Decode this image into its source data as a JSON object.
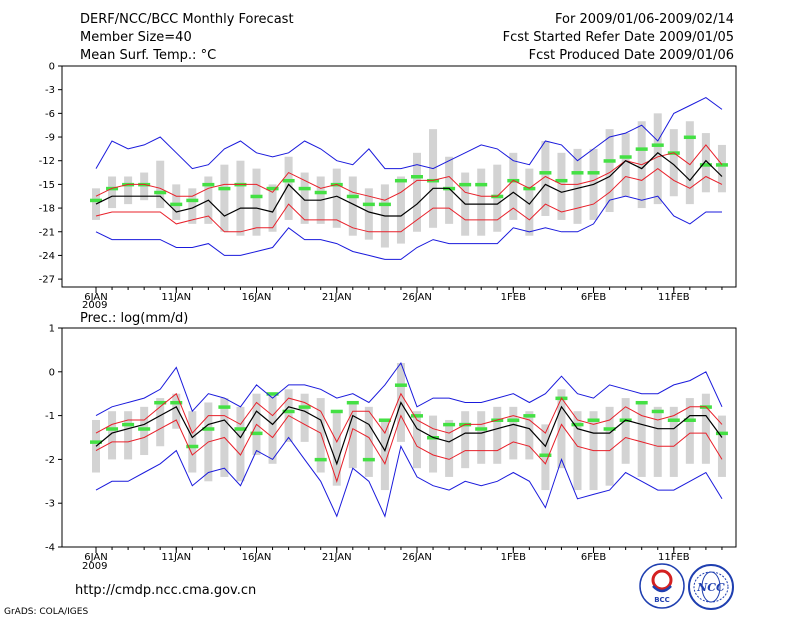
{
  "header": {
    "title": "DERF/NCC/BCC Monthly Forecast",
    "member_size": "Member Size=40",
    "period": "For 2009/01/06-2009/02/14",
    "started": "Fcst Started Refer Date 2009/01/05",
    "produced": "Fcst Produced Date 2009/01/06"
  },
  "footer": {
    "url": "http://cmdp.ncc.cma.gov.cn",
    "credit": "GrADS: COLA/IGES",
    "logo_bcc": "BCC",
    "logo_ncc": "NCC"
  },
  "colors": {
    "mean": "#000000",
    "spread": "#e8202a",
    "envelope": "#1a1adc",
    "observed": "#44e044",
    "box": "#d3d3d3"
  },
  "chart_data": [
    {
      "type": "line",
      "title": "Mean Surf. Temp.: °C",
      "xlabel": "",
      "ylabel": "°C",
      "x": [
        "Jan 6",
        "Jan 7",
        "Jan 8",
        "Jan 9",
        "Jan 10",
        "Jan 11",
        "Jan 12",
        "Jan 13",
        "Jan 14",
        "Jan 15",
        "Jan 16",
        "Jan 17",
        "Jan 18",
        "Jan 19",
        "Jan 20",
        "Jan 21",
        "Jan 22",
        "Jan 23",
        "Jan 24",
        "Jan 25",
        "Jan 26",
        "Jan 27",
        "Jan 28",
        "Jan 29",
        "Jan 30",
        "Jan 31",
        "Feb 1",
        "Feb 2",
        "Feb 3",
        "Feb 4",
        "Feb 5",
        "Feb 6",
        "Feb 7",
        "Feb 8",
        "Feb 9",
        "Feb 10",
        "Feb 11",
        "Feb 12",
        "Feb 13",
        "Feb 14"
      ],
      "xticks": [
        {
          "index": 0,
          "label": "6JAN"
        },
        {
          "index": 5,
          "label": "11JAN"
        },
        {
          "index": 10,
          "label": "16JAN"
        },
        {
          "index": 15,
          "label": "21JAN"
        },
        {
          "index": 20,
          "label": "26JAN"
        },
        {
          "index": 26,
          "label": "1FEB"
        },
        {
          "index": 31,
          "label": "6FEB"
        },
        {
          "index": 36,
          "label": "11FEB"
        }
      ],
      "year_label": "2009",
      "yticks": [
        0,
        -3,
        -6,
        -9,
        -12,
        -15,
        -18,
        -21,
        -24,
        -27
      ],
      "ylim": [
        -28,
        0
      ],
      "series": [
        {
          "name": "upper envelope",
          "role": "envelope",
          "values": [
            -13.0,
            -9.5,
            -10.5,
            -10.0,
            -9.0,
            -11.0,
            -13.0,
            -12.5,
            -10.5,
            -9.5,
            -11.0,
            -11.5,
            -11.0,
            -9.5,
            -10.5,
            -12.0,
            -12.5,
            -10.5,
            -13.0,
            -13.0,
            -12.5,
            -13.0,
            -12.0,
            -11.0,
            -10.0,
            -10.5,
            -12.0,
            -12.5,
            -9.5,
            -10.0,
            -12.0,
            -10.5,
            -9.0,
            -8.5,
            -7.5,
            -9.5,
            -6.0,
            -5.0,
            -4.0,
            -5.5
          ]
        },
        {
          "name": "upper spread",
          "role": "spread",
          "values": [
            -16.5,
            -15.5,
            -15.0,
            -15.0,
            -15.5,
            -16.5,
            -16.5,
            -15.5,
            -15.0,
            -15.0,
            -15.0,
            -16.0,
            -13.5,
            -14.5,
            -15.5,
            -15.0,
            -16.0,
            -16.5,
            -17.0,
            -16.0,
            -14.5,
            -14.5,
            -14.0,
            -16.0,
            -16.5,
            -16.5,
            -14.5,
            -15.5,
            -14.0,
            -15.0,
            -15.0,
            -14.5,
            -13.5,
            -12.0,
            -12.5,
            -11.5,
            -11.0,
            -12.5,
            -10.0,
            -12.5
          ]
        },
        {
          "name": "ensemble mean",
          "role": "mean",
          "values": [
            -17.5,
            -16.5,
            -16.5,
            -16.5,
            -16.5,
            -18.5,
            -18.0,
            -17.0,
            -19.0,
            -18.0,
            -18.0,
            -18.5,
            -15.0,
            -17.0,
            -17.0,
            -16.5,
            -17.5,
            -18.5,
            -19.0,
            -19.0,
            -17.5,
            -15.5,
            -15.5,
            -17.5,
            -17.5,
            -17.5,
            -16.0,
            -17.5,
            -15.0,
            -16.0,
            -15.5,
            -15.0,
            -14.0,
            -12.0,
            -13.0,
            -11.0,
            -12.5,
            -14.5,
            -12.0,
            -14.0
          ]
        },
        {
          "name": "lower spread",
          "role": "spread",
          "values": [
            -19.0,
            -18.5,
            -18.5,
            -18.5,
            -18.5,
            -20.0,
            -19.5,
            -19.0,
            -21.0,
            -21.0,
            -20.5,
            -20.5,
            -17.5,
            -19.5,
            -19.5,
            -19.5,
            -20.5,
            -21.0,
            -21.0,
            -21.0,
            -19.5,
            -18.0,
            -18.0,
            -19.5,
            -19.5,
            -19.5,
            -18.0,
            -19.5,
            -17.5,
            -18.5,
            -18.0,
            -17.5,
            -16.0,
            -14.0,
            -14.5,
            -13.0,
            -14.5,
            -15.5,
            -14.0,
            -15.0
          ]
        },
        {
          "name": "lower envelope",
          "role": "envelope",
          "values": [
            -21.0,
            -22.0,
            -22.0,
            -22.0,
            -22.0,
            -23.0,
            -23.0,
            -22.5,
            -24.0,
            -24.0,
            -23.5,
            -23.0,
            -20.5,
            -22.0,
            -22.0,
            -22.5,
            -23.5,
            -24.0,
            -24.5,
            -24.5,
            -23.0,
            -22.0,
            -22.5,
            -22.5,
            -22.5,
            -22.5,
            -20.5,
            -21.0,
            -20.5,
            -21.0,
            -21.0,
            -20.0,
            -17.0,
            -16.5,
            -17.0,
            -16.5,
            -19.0,
            -20.0,
            -18.5,
            -18.5
          ]
        }
      ],
      "boxes": [
        [
          -19.5,
          -15.5
        ],
        [
          -18.0,
          -14.0
        ],
        [
          -17.5,
          -14.0
        ],
        [
          -17.0,
          -13.5
        ],
        [
          -18.0,
          -12.0
        ],
        [
          -19.5,
          -15.0
        ],
        [
          -20.0,
          -15.5
        ],
        [
          -20.0,
          -14.0
        ],
        [
          -21.0,
          -12.5
        ],
        [
          -21.5,
          -12.0
        ],
        [
          -21.5,
          -13.0
        ],
        [
          -21.0,
          -15.0
        ],
        [
          -19.5,
          -11.5
        ],
        [
          -20.0,
          -13.5
        ],
        [
          -20.0,
          -14.0
        ],
        [
          -20.5,
          -13.0
        ],
        [
          -21.5,
          -14.0
        ],
        [
          -22.0,
          -15.5
        ],
        [
          -23.0,
          -15.0
        ],
        [
          -22.5,
          -14.0
        ],
        [
          -21.0,
          -11.0
        ],
        [
          -20.5,
          -8.0
        ],
        [
          -20.0,
          -11.5
        ],
        [
          -21.5,
          -13.5
        ],
        [
          -21.5,
          -13.0
        ],
        [
          -21.0,
          -12.5
        ],
        [
          -19.5,
          -11.0
        ],
        [
          -21.5,
          -13.0
        ],
        [
          -19.0,
          -9.5
        ],
        [
          -19.5,
          -11.0
        ],
        [
          -20.0,
          -10.5
        ],
        [
          -19.5,
          -10.5
        ],
        [
          -18.5,
          -8.0
        ],
        [
          -16.5,
          -8.5
        ],
        [
          -18.0,
          -7.0
        ],
        [
          -17.5,
          -6.0
        ],
        [
          -16.5,
          -8.0
        ],
        [
          -17.5,
          -7.0
        ],
        [
          -16.0,
          -8.5
        ],
        [
          -16.0,
          -10.0
        ]
      ],
      "observed": [
        -17.0,
        -15.5,
        -15.0,
        -15.0,
        -16.0,
        -17.5,
        -17.0,
        -15.0,
        -15.5,
        -15.0,
        -16.5,
        -15.5,
        -14.5,
        -15.5,
        -16.0,
        -15.0,
        -16.5,
        -17.5,
        -17.5,
        -14.5,
        -14.0,
        -14.5,
        -15.5,
        -15.0,
        -15.0,
        -16.5,
        -14.5,
        -15.5,
        -13.5,
        -14.5,
        -13.5,
        -13.5,
        -12.0,
        -11.5,
        -10.5,
        -10.0,
        -11.0,
        -9.0,
        -12.5,
        -12.5
      ]
    },
    {
      "type": "line",
      "title": "Prec.: log(mm/d)",
      "xlabel": "",
      "ylabel": "log(mm/d)",
      "x": [
        "Jan 6",
        "Jan 7",
        "Jan 8",
        "Jan 9",
        "Jan 10",
        "Jan 11",
        "Jan 12",
        "Jan 13",
        "Jan 14",
        "Jan 15",
        "Jan 16",
        "Jan 17",
        "Jan 18",
        "Jan 19",
        "Jan 20",
        "Jan 21",
        "Jan 22",
        "Jan 23",
        "Jan 24",
        "Jan 25",
        "Jan 26",
        "Jan 27",
        "Jan 28",
        "Jan 29",
        "Jan 30",
        "Jan 31",
        "Feb 1",
        "Feb 2",
        "Feb 3",
        "Feb 4",
        "Feb 5",
        "Feb 6",
        "Feb 7",
        "Feb 8",
        "Feb 9",
        "Feb 10",
        "Feb 11",
        "Feb 12",
        "Feb 13",
        "Feb 14"
      ],
      "xticks": [
        {
          "index": 0,
          "label": "6JAN"
        },
        {
          "index": 5,
          "label": "11JAN"
        },
        {
          "index": 10,
          "label": "16JAN"
        },
        {
          "index": 15,
          "label": "21JAN"
        },
        {
          "index": 20,
          "label": "26JAN"
        },
        {
          "index": 26,
          "label": "1FEB"
        },
        {
          "index": 31,
          "label": "6FEB"
        },
        {
          "index": 36,
          "label": "11FEB"
        }
      ],
      "year_label": "2009",
      "yticks": [
        1,
        0,
        -1,
        -2,
        -3,
        -4
      ],
      "ylim": [
        -4,
        1
      ],
      "series": [
        {
          "name": "upper envelope",
          "role": "envelope",
          "values": [
            -1.0,
            -0.8,
            -0.7,
            -0.6,
            -0.4,
            0.1,
            -0.9,
            -0.5,
            -0.6,
            -0.8,
            -0.3,
            -0.6,
            -0.3,
            -0.3,
            -0.4,
            -0.6,
            -0.5,
            -0.7,
            -0.3,
            0.2,
            -0.8,
            -0.6,
            -0.6,
            -0.7,
            -0.7,
            -0.6,
            -0.5,
            -0.7,
            -0.5,
            -0.1,
            -0.5,
            -0.6,
            -0.3,
            -0.4,
            -0.5,
            -0.5,
            -0.3,
            -0.2,
            0.0,
            -0.8
          ]
        },
        {
          "name": "upper spread",
          "role": "spread",
          "values": [
            -1.4,
            -1.2,
            -1.1,
            -1.1,
            -0.8,
            -0.5,
            -1.4,
            -1.0,
            -1.0,
            -1.2,
            -0.7,
            -1.0,
            -0.6,
            -0.7,
            -0.9,
            -1.6,
            -0.9,
            -0.9,
            -1.4,
            -0.5,
            -1.1,
            -1.3,
            -1.4,
            -1.2,
            -1.2,
            -1.1,
            -1.0,
            -1.1,
            -1.4,
            -0.6,
            -1.1,
            -1.2,
            -1.1,
            -0.8,
            -1.0,
            -1.1,
            -1.0,
            -0.8,
            -0.8,
            -1.2
          ]
        },
        {
          "name": "ensemble mean",
          "role": "mean",
          "values": [
            -1.7,
            -1.4,
            -1.3,
            -1.2,
            -1.0,
            -0.8,
            -1.5,
            -1.2,
            -1.1,
            -1.5,
            -0.9,
            -1.2,
            -0.8,
            -0.9,
            -1.1,
            -2.1,
            -1.0,
            -1.2,
            -1.8,
            -0.7,
            -1.3,
            -1.5,
            -1.6,
            -1.4,
            -1.4,
            -1.3,
            -1.2,
            -1.3,
            -1.7,
            -0.8,
            -1.3,
            -1.4,
            -1.4,
            -1.1,
            -1.2,
            -1.3,
            -1.3,
            -1.0,
            -1.0,
            -1.5
          ]
        },
        {
          "name": "lower spread",
          "role": "spread",
          "values": [
            -1.8,
            -1.6,
            -1.6,
            -1.5,
            -1.3,
            -1.1,
            -1.9,
            -1.6,
            -1.5,
            -1.9,
            -1.2,
            -1.5,
            -1.0,
            -1.2,
            -1.4,
            -2.5,
            -1.3,
            -1.5,
            -2.1,
            -1.0,
            -1.7,
            -1.9,
            -2.0,
            -1.8,
            -1.8,
            -1.8,
            -1.6,
            -1.7,
            -2.1,
            -1.2,
            -1.7,
            -1.8,
            -1.8,
            -1.5,
            -1.6,
            -1.7,
            -1.7,
            -1.4,
            -1.4,
            -2.0
          ]
        },
        {
          "name": "lower envelope",
          "role": "envelope",
          "values": [
            -2.7,
            -2.5,
            -2.5,
            -2.3,
            -2.1,
            -1.8,
            -2.6,
            -2.3,
            -2.2,
            -2.6,
            -1.8,
            -2.0,
            -1.5,
            -2.0,
            -2.5,
            -3.3,
            -2.2,
            -2.5,
            -3.3,
            -1.7,
            -2.4,
            -2.6,
            -2.7,
            -2.5,
            -2.6,
            -2.5,
            -2.3,
            -2.5,
            -3.1,
            -2.0,
            -2.9,
            -2.8,
            -2.7,
            -2.3,
            -2.5,
            -2.7,
            -2.7,
            -2.5,
            -2.3,
            -2.9
          ]
        }
      ],
      "boxes": [
        [
          -2.3,
          -1.1
        ],
        [
          -2.0,
          -0.9
        ],
        [
          -2.0,
          -0.9
        ],
        [
          -1.9,
          -0.8
        ],
        [
          -1.7,
          -0.6
        ],
        [
          -1.3,
          -0.5
        ],
        [
          -2.3,
          -0.9
        ],
        [
          -2.5,
          -0.7
        ],
        [
          -2.4,
          -0.6
        ],
        [
          -2.5,
          -0.8
        ],
        [
          -1.9,
          -0.5
        ],
        [
          -2.1,
          -0.5
        ],
        [
          -1.6,
          -0.4
        ],
        [
          -1.6,
          -0.5
        ],
        [
          -2.3,
          -0.6
        ],
        [
          -2.6,
          -0.9
        ],
        [
          -2.2,
          -0.7
        ],
        [
          -2.4,
          -0.8
        ],
        [
          -2.7,
          -1.1
        ],
        [
          -1.6,
          0.2
        ],
        [
          -2.2,
          -0.9
        ],
        [
          -2.3,
          -1.0
        ],
        [
          -2.4,
          -1.1
        ],
        [
          -2.2,
          -0.9
        ],
        [
          -2.1,
          -0.9
        ],
        [
          -2.1,
          -0.8
        ],
        [
          -2.0,
          -0.8
        ],
        [
          -2.0,
          -0.9
        ],
        [
          -2.7,
          -1.2
        ],
        [
          -2.2,
          -0.4
        ],
        [
          -2.7,
          -0.9
        ],
        [
          -2.7,
          -0.9
        ],
        [
          -2.6,
          -0.8
        ],
        [
          -2.1,
          -0.6
        ],
        [
          -2.4,
          -0.7
        ],
        [
          -2.4,
          -0.8
        ],
        [
          -2.4,
          -0.8
        ],
        [
          -2.1,
          -0.6
        ],
        [
          -2.1,
          -0.5
        ],
        [
          -2.4,
          -1.0
        ]
      ],
      "observed": [
        -1.6,
        -1.3,
        -1.2,
        -1.3,
        -0.7,
        -0.7,
        -1.7,
        -1.3,
        -0.8,
        -1.3,
        -1.4,
        -0.5,
        -0.9,
        -0.8,
        -2.0,
        -0.9,
        -0.7,
        -2.0,
        -1.1,
        -0.3,
        -1.0,
        -1.5,
        -1.2,
        -1.2,
        -1.3,
        -1.1,
        -1.1,
        -1.0,
        -1.9,
        -0.6,
        -1.2,
        -1.1,
        -1.3,
        -1.1,
        -0.7,
        -0.9,
        -1.1,
        -1.1,
        -0.8,
        -1.4
      ]
    }
  ]
}
